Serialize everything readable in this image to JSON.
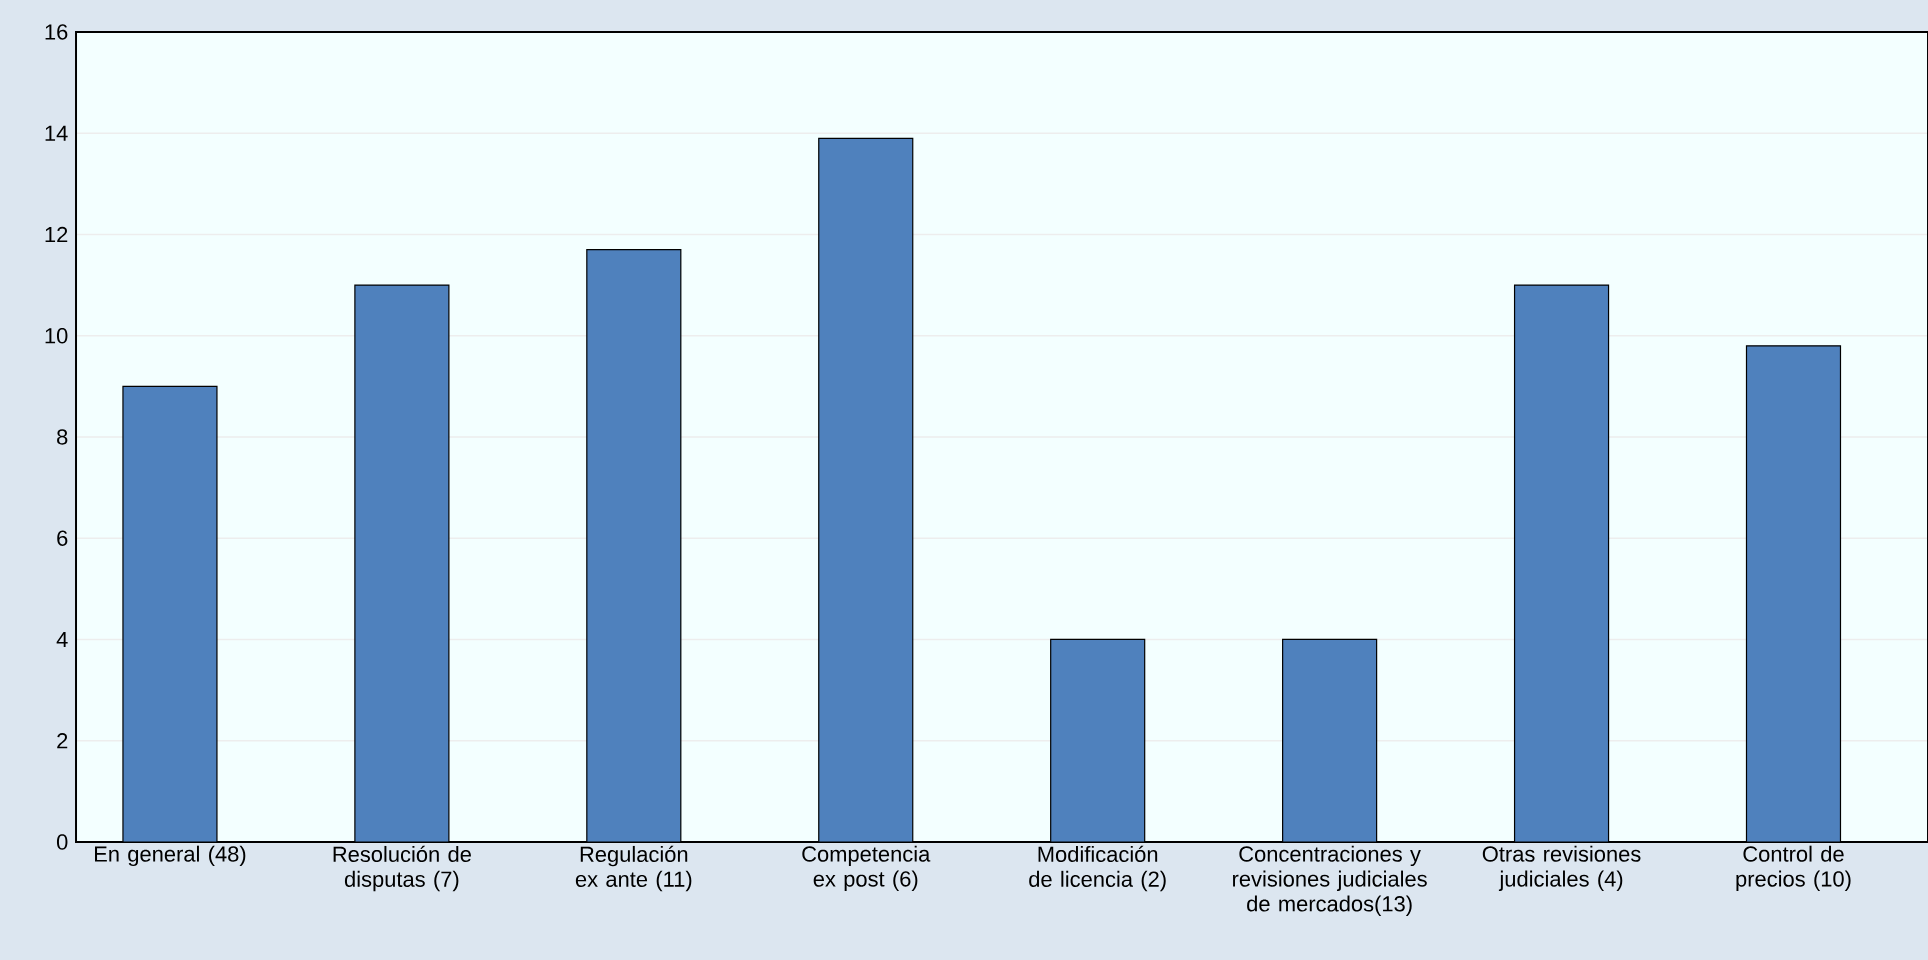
{
  "chart_data": {
    "type": "bar",
    "categories": [
      "En general (48)",
      "Resolución de disputas (7)",
      "Regulación ex ante (11)",
      "Competencia ex post (6)",
      "Modificación de licencia (2)",
      "Concentraciones y revisiones judiciales de mercados(13)",
      "Otras revisiones judiciales (4)",
      "Control de precios (10)"
    ],
    "values": [
      9,
      11,
      11.7,
      13.9,
      4,
      4,
      11,
      9.8
    ],
    "color": "#4f81bd",
    "ylim": [
      0,
      16
    ],
    "yticks": [
      0,
      2,
      4,
      6,
      8,
      10,
      12,
      14,
      16
    ],
    "grid": "y"
  }
}
